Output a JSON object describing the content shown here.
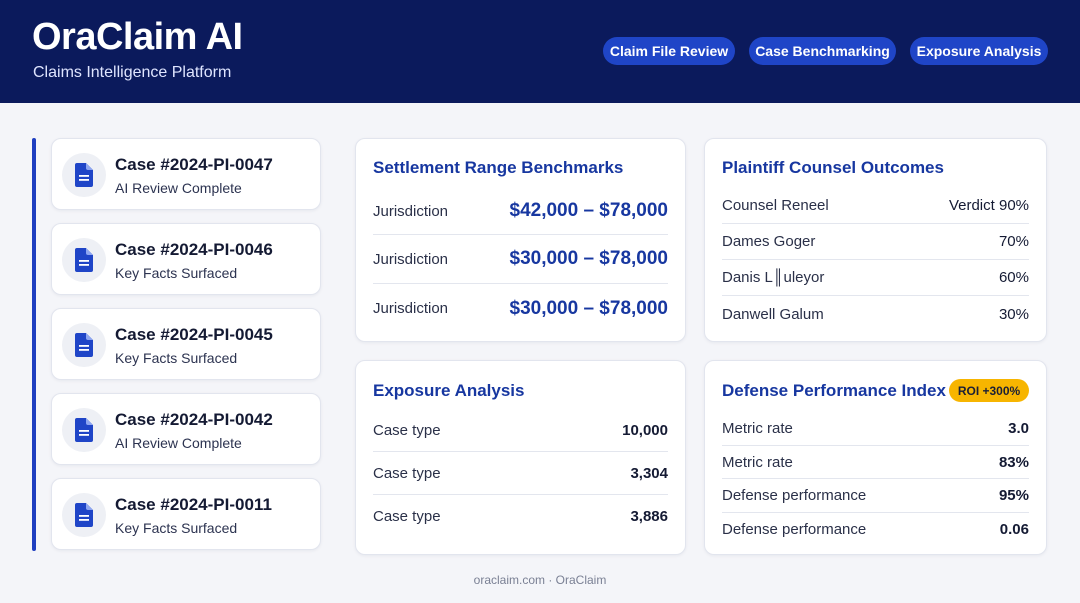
{
  "header": {
    "title": "OraClaim AI",
    "subtitle": "Claims Intelligence Platform",
    "nav": [
      {
        "label": "Claim File Review"
      },
      {
        "label": "Case Benchmarking"
      },
      {
        "label": "Exposure Analysis"
      }
    ]
  },
  "cases": [
    {
      "id": "Case #2024-PI-0047",
      "status": "AI Review Complete",
      "icon": "document-icon"
    },
    {
      "id": "Case #2024-PI-0046",
      "status": "Key Facts Surfaced",
      "icon": "document-icon"
    },
    {
      "id": "Case #2024-PI-0045",
      "status": "Key Facts Surfaced",
      "icon": "document-icon"
    },
    {
      "id": "Case #2024-PI-0042",
      "status": "AI Review Complete",
      "icon": "document-icon"
    },
    {
      "id": "Case #2024-PI-0011",
      "status": "Key Facts Surfaced",
      "icon": "document-icon"
    }
  ],
  "settlement": {
    "title": "Settlement Range Benchmarks",
    "rows": [
      {
        "label": "Jurisdiction",
        "value": "$42,000 – $78,000"
      },
      {
        "label": "Jurisdiction",
        "value": "$30,000 – $78,000"
      },
      {
        "label": "Jurisdiction",
        "value": "$30,000 – $78,000"
      }
    ]
  },
  "counsel": {
    "title": "Plaintiff Counsel Outcomes",
    "rows": [
      {
        "label": "Counsel Reneel",
        "value": "Verdict 90%"
      },
      {
        "label": "Dames Goger",
        "value": "70%"
      },
      {
        "label": "Danis L║uleyor",
        "value": "60%"
      },
      {
        "label": "Danwell Galum",
        "value": "30%"
      }
    ]
  },
  "exposure": {
    "title": "Exposure Analysis",
    "rows": [
      {
        "label": "Case type",
        "value": "10,000"
      },
      {
        "label": "Case type",
        "value": "3,304"
      },
      {
        "label": "Case type",
        "value": "3,886"
      }
    ]
  },
  "defense": {
    "title": "Defense Performance Index",
    "badge": "ROI +300%",
    "rows": [
      {
        "label": "Metric rate",
        "value": "3.0"
      },
      {
        "label": "Metric rate",
        "value": "83%"
      },
      {
        "label": "Defense performance",
        "value": "95%"
      },
      {
        "label": "Defense performance",
        "value": "0.06"
      }
    ]
  },
  "footer": "oraclaim.com · OraClaim",
  "colors": {
    "header_bg": "#0b1a5c",
    "accent": "#1737a0",
    "nav_pill": "#1f45c7",
    "badge": "#f7b500"
  }
}
